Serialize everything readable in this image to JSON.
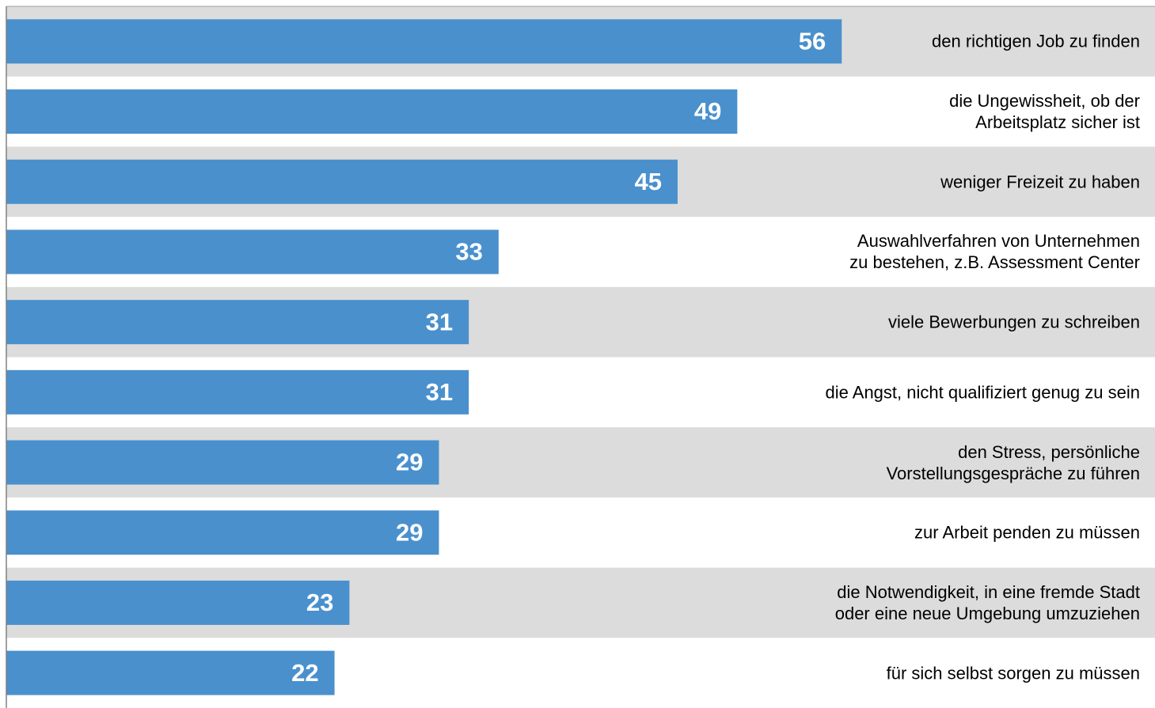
{
  "chart_data": {
    "type": "bar",
    "orientation": "horizontal",
    "categories": [
      "den richtigen Job zu finden",
      "die Ungewissheit, ob der\nArbeitsplatz sicher ist",
      "weniger Freizeit zu haben",
      "Auswahlverfahren von Unternehmen\nzu bestehen, z.B. Assessment Center",
      "viele Bewerbungen zu schreiben",
      "die Angst, nicht qualifiziert genug zu sein",
      "den Stress, persönliche\nVorstellungsgespräche zu führen",
      "zur Arbeit penden zu müssen",
      "die Notwendigkeit, in eine fremde Stadt\noder eine neue Umgebung umzuziehen",
      "für sich selbst sorgen zu müssen"
    ],
    "values": [
      56,
      49,
      45,
      33,
      31,
      31,
      29,
      29,
      23,
      22
    ],
    "color": "#4a90cd",
    "xlim": [
      0,
      77
    ]
  }
}
